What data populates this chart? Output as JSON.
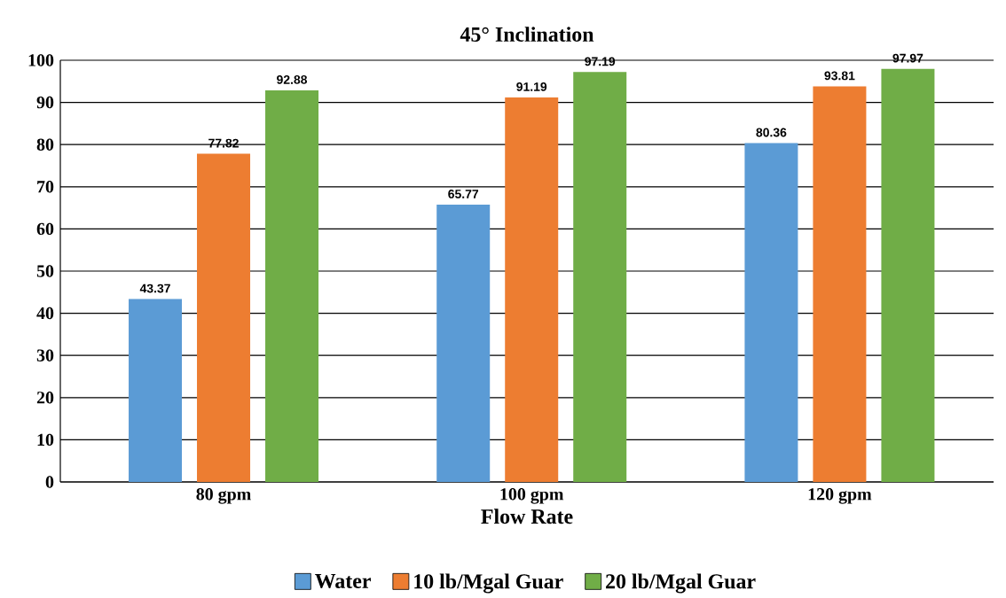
{
  "chart_data": {
    "type": "bar",
    "title": "45° Inclination",
    "xlabel": "Flow Rate",
    "categories": [
      "80 gpm",
      "100 gpm",
      "120 gpm"
    ],
    "series": [
      {
        "name": "Water",
        "color": "#5b9bd5",
        "values": [
          43.37,
          65.77,
          80.36
        ]
      },
      {
        "name": "10 lb/Mgal Guar",
        "color": "#ed7d31",
        "values": [
          77.82,
          91.19,
          93.81
        ]
      },
      {
        "name": "20 lb/Mgal Guar",
        "color": "#70ad47",
        "values": [
          92.88,
          97.19,
          97.97
        ]
      }
    ],
    "ylim": [
      0,
      100
    ],
    "yticks": [
      0,
      10,
      20,
      30,
      40,
      50,
      60,
      70,
      80,
      90,
      100
    ],
    "grid": "y",
    "legend": "bottom",
    "data_labels": true
  }
}
